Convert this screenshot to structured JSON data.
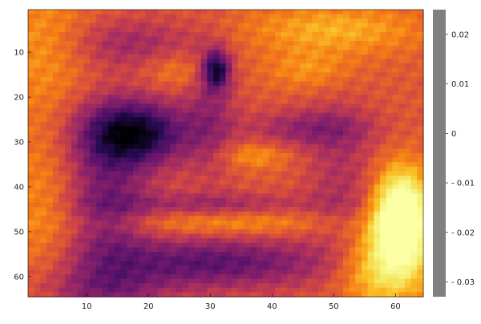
{
  "chart_data": {
    "type": "heatmap",
    "title": "",
    "xlabel": "",
    "ylabel": "",
    "grid": false,
    "colormap": "inferno",
    "nx": 64,
    "ny": 64,
    "xlim": [
      0.5,
      64.5
    ],
    "ylim": [
      0.5,
      64.5
    ],
    "y_axis_direction": "top-to-bottom",
    "x_ticks": [
      10,
      20,
      30,
      40,
      50,
      60
    ],
    "x_tick_labels": [
      "10",
      "20",
      "30",
      "40",
      "50",
      "60"
    ],
    "y_ticks": [
      10,
      20,
      30,
      40,
      50,
      60
    ],
    "y_tick_labels": [
      "10",
      "20",
      "30",
      "40",
      "50",
      "60"
    ],
    "colorbar": {
      "range": [
        -0.033,
        0.025
      ],
      "ticks": [
        0.02,
        0.01,
        0,
        -0.01,
        -0.02,
        -0.03
      ],
      "tick_labels": [
        "0.02",
        "0.01",
        "0",
        "- 0.01",
        "- 0.02",
        "- 0.03"
      ],
      "bar_color": "#808080"
    },
    "field": {
      "base": 0.0,
      "features": [
        {
          "cx": 3,
          "cy": 8,
          "sx": 6,
          "sy": 10,
          "a": 0.009
        },
        {
          "cx": 3,
          "cy": 45,
          "sx": 5,
          "sy": 14,
          "a": 0.008
        },
        {
          "cx": 50,
          "cy": 5,
          "sx": 10,
          "sy": 4,
          "a": 0.012
        },
        {
          "cx": 18,
          "cy": 28,
          "sx": 6,
          "sy": 5,
          "a": -0.03
        },
        {
          "cx": 13,
          "cy": 42,
          "sx": 5,
          "sy": 14,
          "a": -0.016
        },
        {
          "cx": 17,
          "cy": 8,
          "sx": 8,
          "sy": 4,
          "a": -0.01
        },
        {
          "cx": 46,
          "cy": 27,
          "sx": 7,
          "sy": 3,
          "a": -0.012
        },
        {
          "cx": 31,
          "cy": 14,
          "sx": 1.5,
          "sy": 3,
          "a": -0.028
        },
        {
          "cx": 30,
          "cy": 24,
          "sx": 3,
          "sy": 10,
          "a": -0.01
        },
        {
          "cx": 30,
          "cy": 57,
          "sx": 14,
          "sy": 4,
          "a": -0.02
        },
        {
          "cx": 30,
          "cy": 44,
          "sx": 12,
          "sy": 2,
          "a": -0.01
        },
        {
          "cx": 33,
          "cy": 48,
          "sx": 13,
          "sy": 2,
          "a": 0.009
        },
        {
          "cx": 61,
          "cy": 47,
          "sx": 3,
          "sy": 7,
          "a": 0.045
        },
        {
          "cx": 58,
          "cy": 58,
          "sx": 5,
          "sy": 6,
          "a": 0.02
        },
        {
          "cx": 46,
          "cy": 14,
          "sx": 5,
          "sy": 3,
          "a": 0.008
        },
        {
          "cx": 25,
          "cy": 14,
          "sx": 4,
          "sy": 3,
          "a": 0.007
        },
        {
          "cx": 37,
          "cy": 33,
          "sx": 4,
          "sy": 2,
          "a": 0.009
        },
        {
          "cx": 51,
          "cy": 38,
          "sx": 4,
          "sy": 12,
          "a": -0.008
        },
        {
          "cx": 12,
          "cy": 63,
          "sx": 8,
          "sy": 3,
          "a": -0.01
        }
      ]
    }
  }
}
